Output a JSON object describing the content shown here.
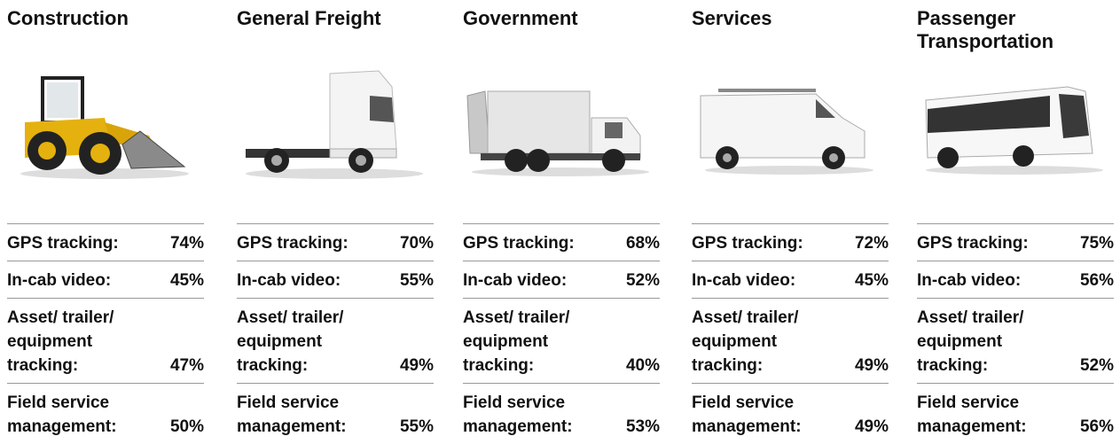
{
  "columns": [
    {
      "title": "Construction",
      "rows": [
        {
          "label": "GPS tracking:",
          "value": "74%"
        },
        {
          "label": "In-cab video:",
          "value": "45%"
        },
        {
          "label": "Asset/ trailer/ equipment tracking:",
          "value": "47%"
        },
        {
          "label": "Field service management:",
          "value": "50%"
        }
      ]
    },
    {
      "title": "General Freight",
      "rows": [
        {
          "label": "GPS tracking:",
          "value": "70%"
        },
        {
          "label": "In-cab video:",
          "value": "55%"
        },
        {
          "label": "Asset/ trailer/ equipment tracking:",
          "value": "49%"
        },
        {
          "label": "Field service management:",
          "value": "55%"
        }
      ]
    },
    {
      "title": "Government",
      "rows": [
        {
          "label": "GPS tracking:",
          "value": "68%"
        },
        {
          "label": "In-cab video:",
          "value": "52%"
        },
        {
          "label": "Asset/ trailer/ equipment tracking:",
          "value": "40%"
        },
        {
          "label": "Field service management:",
          "value": "53%"
        }
      ]
    },
    {
      "title": "Services",
      "rows": [
        {
          "label": "GPS tracking:",
          "value": "72%"
        },
        {
          "label": "In-cab video:",
          "value": "45%"
        },
        {
          "label": "Asset/ trailer/ equipment tracking:",
          "value": "49%"
        },
        {
          "label": "Field service management:",
          "value": "49%"
        }
      ]
    },
    {
      "title": "Passenger Transportation",
      "rows": [
        {
          "label": "GPS tracking:",
          "value": "75%"
        },
        {
          "label": "In-cab video:",
          "value": "56%"
        },
        {
          "label": "Asset/ trailer/ equipment tracking:",
          "value": "52%"
        },
        {
          "label": "Field service management:",
          "value": "56%"
        }
      ]
    }
  ]
}
